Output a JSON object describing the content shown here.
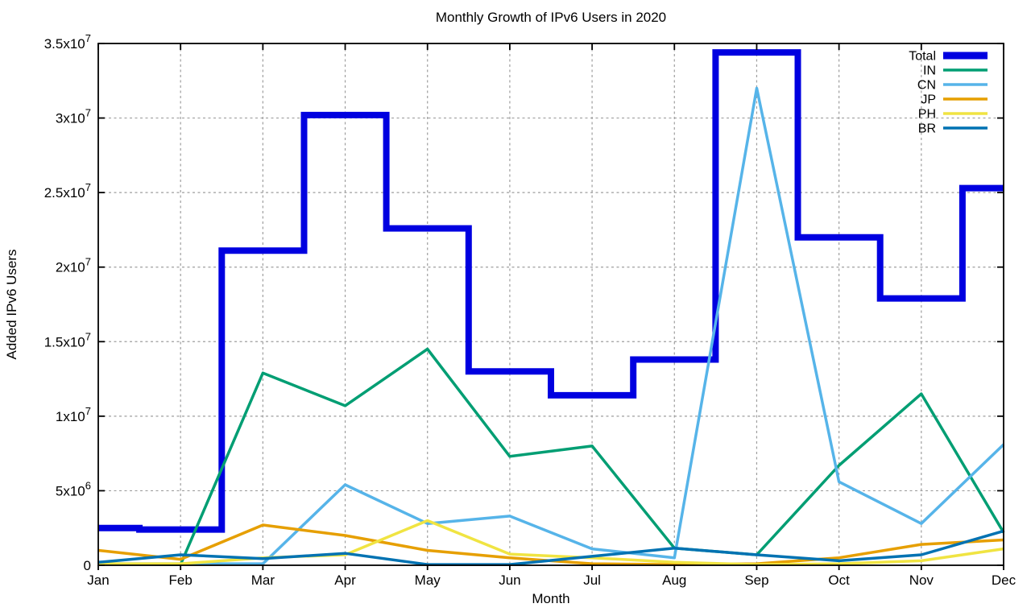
{
  "chart_data": {
    "type": "line",
    "title": "Monthly Growth of IPv6 Users in 2020",
    "xlabel": "Month",
    "ylabel": "Added IPv6 Users",
    "categories": [
      "Jan",
      "Feb",
      "Mar",
      "Apr",
      "May",
      "Jun",
      "Jul",
      "Aug",
      "Sep",
      "Oct",
      "Nov",
      "Dec"
    ],
    "ylim": [
      0,
      35000000
    ],
    "ytick_interval": 5000000,
    "ytick_labels": [
      "0",
      "5x10^6",
      "1x10^7",
      "1.5x10^7",
      "2x10^7",
      "2.5x10^7",
      "3x10^7",
      "3.5x10^7"
    ],
    "grid": true,
    "legend_position": "top-right",
    "series": [
      {
        "name": "Total",
        "style": "histeps",
        "color": "#0000e0",
        "line_width": 8,
        "values": [
          2500000,
          2400000,
          21100000,
          30200000,
          22600000,
          13000000,
          11400000,
          13800000,
          34400000,
          22000000,
          17900000,
          25300000
        ]
      },
      {
        "name": "IN",
        "style": "line",
        "color": "#009e73",
        "line_width": 3.5,
        "values": [
          100000,
          50000,
          12900000,
          10700000,
          14500000,
          7300000,
          8000000,
          1150000,
          700000,
          6700000,
          11500000,
          2200000
        ]
      },
      {
        "name": "CN",
        "style": "line",
        "color": "#56b4e9",
        "line_width": 3.5,
        "values": [
          100000,
          100000,
          100000,
          5400000,
          2800000,
          3300000,
          1100000,
          500000,
          32000000,
          5600000,
          2800000,
          8100000
        ]
      },
      {
        "name": "JP",
        "style": "line",
        "color": "#e69f00",
        "line_width": 3.5,
        "values": [
          1000000,
          400000,
          2700000,
          2000000,
          1000000,
          500000,
          100000,
          50000,
          100000,
          500000,
          1400000,
          1700000
        ]
      },
      {
        "name": "PH",
        "style": "line",
        "color": "#f0e442",
        "line_width": 3.5,
        "values": [
          100000,
          100000,
          500000,
          700000,
          3000000,
          750000,
          500000,
          200000,
          50000,
          100000,
          300000,
          1100000
        ]
      },
      {
        "name": "BR",
        "style": "line",
        "color": "#0072b2",
        "line_width": 3.5,
        "values": [
          200000,
          700000,
          450000,
          800000,
          50000,
          50000,
          600000,
          1150000,
          700000,
          300000,
          700000,
          2300000
        ]
      }
    ],
    "colors": {
      "axis": "#000000",
      "grid": "#9e9e9e",
      "background": "#ffffff"
    }
  }
}
